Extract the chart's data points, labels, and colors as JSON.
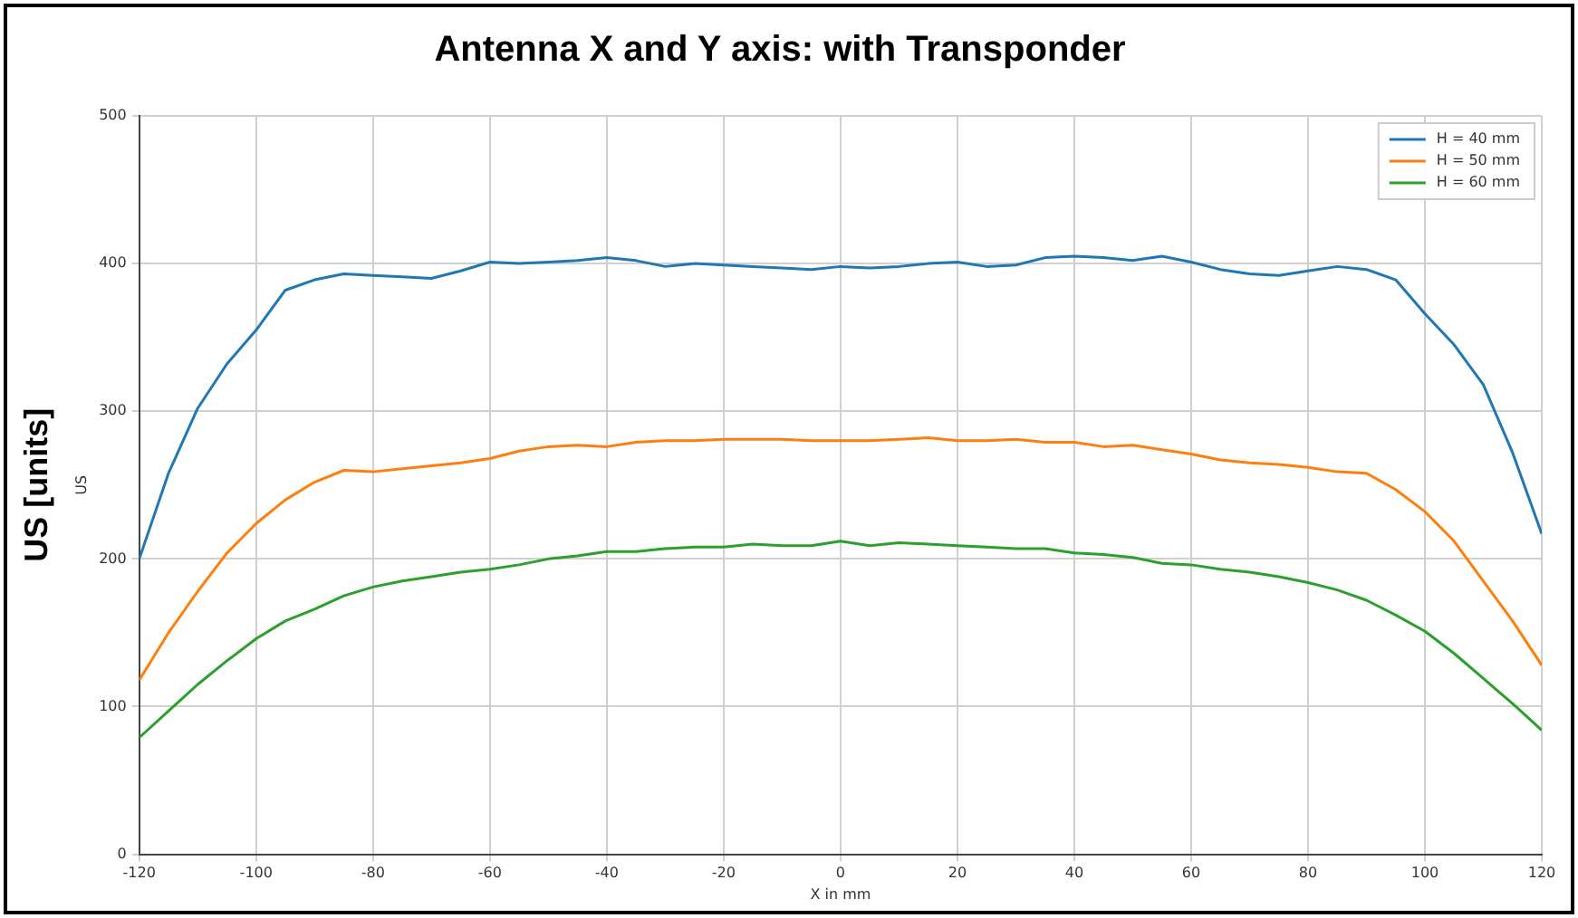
{
  "chart_data": {
    "type": "line",
    "title": "Antenna X and Y axis: with Transponder",
    "xlabel": "X in mm",
    "ylabel": "US [units]",
    "annotations": [
      "US"
    ],
    "x": [
      -120,
      -115,
      -110,
      -105,
      -100,
      -95,
      -90,
      -85,
      -80,
      -75,
      -70,
      -65,
      -60,
      -55,
      -50,
      -45,
      -40,
      -35,
      -30,
      -25,
      -20,
      -15,
      -10,
      -5,
      0,
      5,
      10,
      15,
      20,
      25,
      30,
      35,
      40,
      45,
      50,
      55,
      60,
      65,
      70,
      75,
      80,
      85,
      90,
      95,
      100,
      105,
      110,
      115,
      120
    ],
    "series": [
      {
        "name": "H = 40 mm",
        "color": "#1f77b4",
        "values": [
          200,
          258,
          302,
          332,
          355,
          382,
          389,
          393,
          392,
          391,
          390,
          395,
          401,
          400,
          401,
          402,
          404,
          402,
          398,
          400,
          399,
          398,
          397,
          396,
          398,
          397,
          398,
          400,
          401,
          398,
          399,
          404,
          405,
          404,
          402,
          405,
          401,
          396,
          393,
          392,
          395,
          398,
          396,
          389,
          366,
          345,
          318,
          272,
          217
        ]
      },
      {
        "name": "H = 50 mm",
        "color": "#ff7f0e",
        "values": [
          118,
          150,
          178,
          204,
          224,
          240,
          252,
          260,
          259,
          261,
          263,
          265,
          268,
          273,
          276,
          277,
          276,
          279,
          280,
          280,
          281,
          281,
          281,
          280,
          280,
          280,
          281,
          282,
          280,
          280,
          281,
          279,
          279,
          276,
          277,
          274,
          271,
          267,
          265,
          264,
          262,
          259,
          258,
          247,
          232,
          212,
          185,
          158,
          128
        ]
      },
      {
        "name": "H = 60 mm",
        "color": "#2ca02c",
        "values": [
          79,
          97,
          115,
          131,
          146,
          158,
          166,
          175,
          181,
          185,
          188,
          191,
          193,
          196,
          200,
          202,
          205,
          205,
          207,
          208,
          208,
          210,
          209,
          209,
          212,
          209,
          211,
          210,
          209,
          208,
          207,
          207,
          204,
          203,
          201,
          197,
          196,
          193,
          191,
          188,
          184,
          179,
          172,
          162,
          151,
          136,
          119,
          102,
          84
        ]
      }
    ],
    "xlim": [
      -120,
      120
    ],
    "xticks": [
      -120,
      -100,
      -80,
      -60,
      -40,
      -20,
      0,
      20,
      40,
      60,
      80,
      100,
      120
    ],
    "ylim": [
      0,
      500
    ],
    "yticks": [
      0,
      100,
      200,
      300,
      400,
      500
    ],
    "grid": true,
    "legend": "top right",
    "marker": "none",
    "line_style": "solid"
  }
}
